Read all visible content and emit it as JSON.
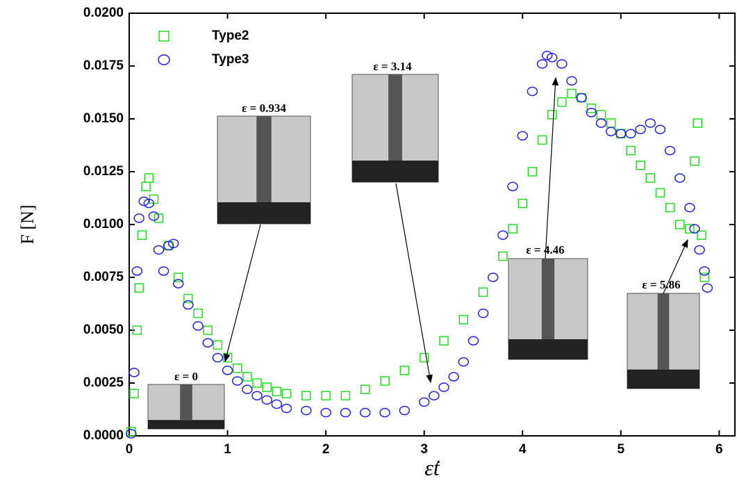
{
  "chart_data": {
    "type": "scatter",
    "x_label": "ε̇t",
    "y_label": "F [N]",
    "xlim": [
      0,
      6.16
    ],
    "ylim": [
      0,
      0.02
    ],
    "xticks": [
      0,
      1,
      2,
      3,
      4,
      5,
      6
    ],
    "yticks": [
      {
        "value": 0,
        "label": "0.0000"
      },
      {
        "value": 0.0025,
        "label": "0.0025"
      },
      {
        "value": 0.005,
        "label": "0.0050"
      },
      {
        "value": 0.0075,
        "label": "0.0075"
      },
      {
        "value": 0.01,
        "label": "0.0100"
      },
      {
        "value": 0.0125,
        "label": "0.0125"
      },
      {
        "value": 0.015,
        "label": "0.0150"
      },
      {
        "value": 0.0175,
        "label": "0.0175"
      },
      {
        "value": 0.02,
        "label": "0.0200"
      }
    ],
    "legend": "upper left",
    "series": [
      {
        "name": "Type2",
        "color": "#22dd22",
        "marker": "square",
        "x": [
          0.02,
          0.05,
          0.08,
          0.1,
          0.13,
          0.17,
          0.2,
          0.25,
          0.3,
          0.4,
          0.5,
          0.6,
          0.7,
          0.8,
          0.9,
          1.0,
          1.1,
          1.2,
          1.3,
          1.4,
          1.5,
          1.6,
          1.8,
          2.0,
          2.2,
          2.4,
          2.6,
          2.8,
          3.0,
          3.2,
          3.4,
          3.6,
          3.8,
          3.9,
          4.0,
          4.1,
          4.2,
          4.3,
          4.4,
          4.5,
          4.6,
          4.7,
          4.8,
          4.9,
          5.0,
          5.1,
          5.2,
          5.3,
          5.4,
          5.5,
          5.6,
          5.7,
          5.75,
          5.78,
          5.82,
          5.85
        ],
        "values": [
          0.0002,
          0.002,
          0.005,
          0.007,
          0.0095,
          0.0118,
          0.0122,
          0.0112,
          0.0103,
          0.009,
          0.0075,
          0.0065,
          0.0058,
          0.005,
          0.0043,
          0.0037,
          0.0032,
          0.0028,
          0.0025,
          0.0023,
          0.0021,
          0.002,
          0.0019,
          0.0019,
          0.0019,
          0.0022,
          0.0026,
          0.0031,
          0.0037,
          0.0045,
          0.0055,
          0.0068,
          0.0085,
          0.0098,
          0.011,
          0.0125,
          0.014,
          0.0152,
          0.0158,
          0.0162,
          0.016,
          0.0155,
          0.0152,
          0.0148,
          0.0143,
          0.0135,
          0.0128,
          0.0122,
          0.0115,
          0.0108,
          0.01,
          0.0098,
          0.013,
          0.0148,
          0.0095,
          0.0075
        ]
      },
      {
        "name": "Type3",
        "color": "#2020dd",
        "marker": "circle",
        "x": [
          0.02,
          0.05,
          0.08,
          0.1,
          0.15,
          0.2,
          0.25,
          0.3,
          0.35,
          0.4,
          0.45,
          0.5,
          0.6,
          0.7,
          0.8,
          0.9,
          1.0,
          1.1,
          1.2,
          1.3,
          1.4,
          1.5,
          1.6,
          1.8,
          2.0,
          2.2,
          2.4,
          2.6,
          2.8,
          3.0,
          3.1,
          3.2,
          3.3,
          3.4,
          3.5,
          3.6,
          3.7,
          3.8,
          3.9,
          4.0,
          4.1,
          4.2,
          4.25,
          4.3,
          4.4,
          4.5,
          4.6,
          4.7,
          4.8,
          4.9,
          5.0,
          5.1,
          5.2,
          5.3,
          5.4,
          5.5,
          5.6,
          5.7,
          5.75,
          5.8,
          5.85,
          5.88
        ],
        "values": [
          0.0001,
          0.003,
          0.0078,
          0.0103,
          0.0111,
          0.011,
          0.0104,
          0.0088,
          0.0078,
          0.009,
          0.0091,
          0.0072,
          0.0062,
          0.0052,
          0.0044,
          0.0037,
          0.0031,
          0.0026,
          0.0022,
          0.0019,
          0.0017,
          0.0015,
          0.0013,
          0.0012,
          0.0011,
          0.0011,
          0.0011,
          0.0011,
          0.0012,
          0.0016,
          0.0019,
          0.0023,
          0.0028,
          0.0035,
          0.0045,
          0.0058,
          0.0075,
          0.0095,
          0.0118,
          0.0142,
          0.0163,
          0.0176,
          0.018,
          0.0179,
          0.0176,
          0.0168,
          0.016,
          0.0153,
          0.0148,
          0.0144,
          0.0143,
          0.0143,
          0.0145,
          0.0148,
          0.0145,
          0.0135,
          0.0122,
          0.0108,
          0.0098,
          0.0088,
          0.0078,
          0.007
        ]
      }
    ],
    "annotations": [
      "ε = 0",
      "ε = 0.934",
      "ε = 3.14",
      "ε = 4.46",
      "ε = 5.86"
    ]
  }
}
